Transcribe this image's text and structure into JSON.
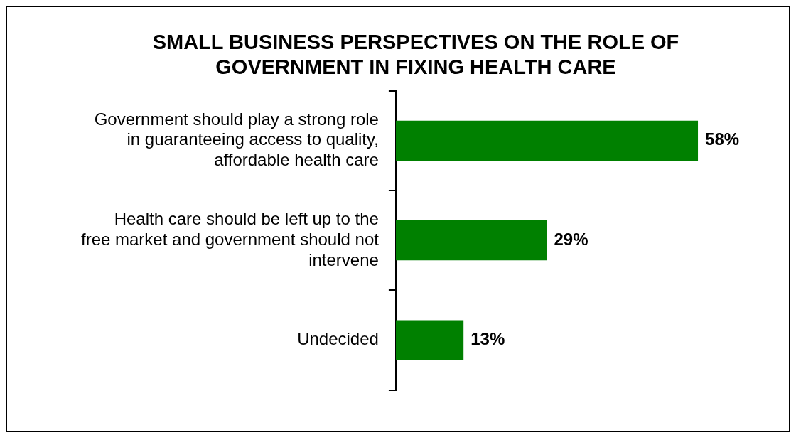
{
  "chart_data": {
    "type": "bar",
    "orientation": "horizontal",
    "title": "SMALL BUSINESS PERSPECTIVES ON THE ROLE OF GOVERNMENT IN FIXING HEALTH CARE",
    "categories": [
      "Government should play a strong role in guaranteeing access to quality, affordable health care",
      "Health care should be left up to the free market and government should not intervene",
      "Undecided"
    ],
    "values": [
      58,
      29,
      13
    ],
    "color": "#008000",
    "data_labels": true,
    "value_labels": [
      "58%",
      "29%",
      "13%"
    ]
  }
}
